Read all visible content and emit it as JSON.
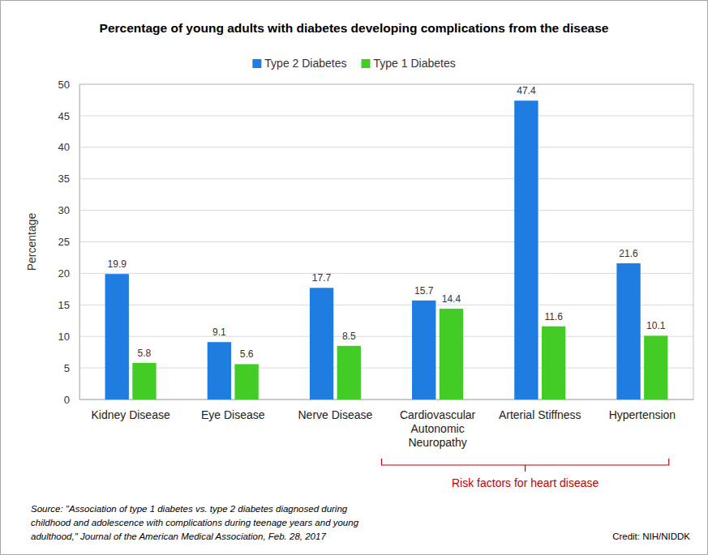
{
  "chart_data": {
    "type": "bar",
    "title": "Percentage of young adults with diabetes developing complications from the disease",
    "categories": [
      "Kidney Disease",
      "Eye Disease",
      "Nerve Disease",
      "Cardiovascular Autonomic Neuropathy",
      "Arterial Stiffness",
      "Hypertension"
    ],
    "series": [
      {
        "name": "Type 2 Diabetes",
        "color": "#1f7ce0",
        "values": [
          19.9,
          9.1,
          17.7,
          15.7,
          47.4,
          21.6
        ]
      },
      {
        "name": "Type 1 Diabetes",
        "color": "#42cc25",
        "values": [
          5.8,
          5.6,
          8.5,
          14.4,
          11.6,
          10.1
        ]
      }
    ],
    "ylabel": "Percentage",
    "ylim": [
      0,
      50
    ],
    "yticks": [
      0,
      5,
      10,
      15,
      20,
      25,
      30,
      35,
      40,
      45,
      50
    ],
    "grid": true,
    "legend": "top",
    "data_labels": true,
    "annotations": [
      {
        "text": "Risk factors for heart disease",
        "from": "Cardiovascular Autonomic Neuropathy",
        "to": "Hypertension"
      }
    ],
    "source": [
      "Source: \"Association of type 1 diabetes vs. type 2 diabetes diagnosed during",
      "childhood and adolescence with complications during teenage years and young",
      "adulthood,\" Journal of the American Medical Association, Feb. 28, 2017"
    ],
    "credit": "Credit: NIH/NIDDK"
  }
}
